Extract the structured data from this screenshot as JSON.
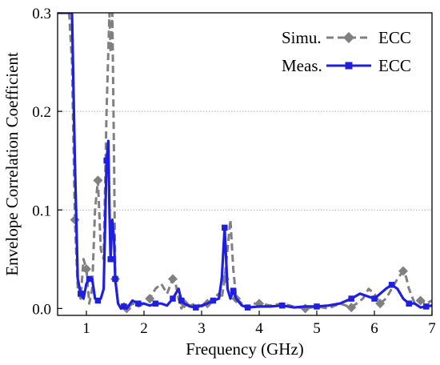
{
  "chart_data": {
    "type": "line",
    "title": "",
    "xlabel": "Frequency (GHz)",
    "ylabel": "Envelope Correlation Coefficient",
    "xlim": [
      0.5,
      7.0
    ],
    "ylim": [
      -0.007,
      0.3
    ],
    "x_ticks": [
      1,
      2,
      3,
      4,
      5,
      6,
      7
    ],
    "x_tick_labels": [
      "1",
      "2",
      "3",
      "4",
      "5",
      "6",
      "7"
    ],
    "y_ticks": [
      0.0,
      0.1,
      0.2,
      0.3
    ],
    "y_tick_labels": [
      "0.0",
      "0.1",
      "0.2",
      "0.3"
    ],
    "grid": "horizontal dotted at 0.1 and 0.2",
    "legend_position": "top-right",
    "series": [
      {
        "name": "ECC",
        "legend_prefix": "Simu.",
        "color": "#808080",
        "dash": "dashed",
        "marker": "diamond",
        "x": [
          0.5,
          0.6,
          0.7,
          0.75,
          0.8,
          0.85,
          0.9,
          0.95,
          1.0,
          1.05,
          1.1,
          1.15,
          1.2,
          1.25,
          1.3,
          1.35,
          1.4,
          1.42,
          1.45,
          1.48,
          1.5,
          1.55,
          1.6,
          1.65,
          1.7,
          1.8,
          1.9,
          2.0,
          2.1,
          2.2,
          2.3,
          2.4,
          2.5,
          2.55,
          2.6,
          2.65,
          2.7,
          2.8,
          2.9,
          3.0,
          3.1,
          3.2,
          3.3,
          3.35,
          3.4,
          3.45,
          3.5,
          3.55,
          3.6,
          3.7,
          3.8,
          3.9,
          4.0,
          4.2,
          4.4,
          4.6,
          4.8,
          5.0,
          5.2,
          5.4,
          5.6,
          5.8,
          5.9,
          6.0,
          6.1,
          6.2,
          6.3,
          6.4,
          6.5,
          6.55,
          6.6,
          6.7,
          6.8,
          6.9,
          7.0
        ],
        "y": [
          0.3,
          0.3,
          0.3,
          0.25,
          0.09,
          0.02,
          0.01,
          0.05,
          0.04,
          0.005,
          0.02,
          0.1,
          0.13,
          0.06,
          0.05,
          0.2,
          0.3,
          0.26,
          0.3,
          0.15,
          0.03,
          0.005,
          0.0,
          0.005,
          0.0,
          0.005,
          0.002,
          0.005,
          0.01,
          0.02,
          0.025,
          0.015,
          0.03,
          0.025,
          0.01,
          0.0,
          0.005,
          0.003,
          0.005,
          0.002,
          0.005,
          0.01,
          0.015,
          0.01,
          0.03,
          0.06,
          0.09,
          0.04,
          0.01,
          0.005,
          0.0,
          0.005,
          0.005,
          0.003,
          0.005,
          0.002,
          0.0,
          0.002,
          0.0,
          0.005,
          0.001,
          0.01,
          0.02,
          0.015,
          0.005,
          0.01,
          0.02,
          0.03,
          0.038,
          0.032,
          0.02,
          0.005,
          0.008,
          0.005,
          0.008
        ]
      },
      {
        "name": "ECC",
        "legend_prefix": "Meas.",
        "color": "#1f1fe0",
        "dash": "solid",
        "marker": "square",
        "x": [
          0.5,
          0.6,
          0.7,
          0.75,
          0.8,
          0.85,
          0.9,
          0.95,
          1.0,
          1.05,
          1.1,
          1.15,
          1.2,
          1.25,
          1.3,
          1.35,
          1.38,
          1.4,
          1.42,
          1.45,
          1.48,
          1.5,
          1.55,
          1.6,
          1.65,
          1.7,
          1.8,
          1.9,
          2.0,
          2.1,
          2.2,
          2.3,
          2.4,
          2.5,
          2.55,
          2.6,
          2.65,
          2.7,
          2.8,
          2.9,
          3.0,
          3.1,
          3.2,
          3.3,
          3.35,
          3.4,
          3.45,
          3.5,
          3.55,
          3.6,
          3.7,
          3.8,
          4.0,
          4.2,
          4.4,
          4.6,
          4.8,
          5.0,
          5.2,
          5.4,
          5.6,
          5.75,
          5.9,
          6.0,
          6.1,
          6.2,
          6.3,
          6.4,
          6.5,
          6.6,
          6.7,
          6.8,
          6.9,
          7.0
        ],
        "y": [
          0.3,
          0.3,
          0.3,
          0.3,
          0.15,
          0.03,
          0.015,
          0.01,
          0.025,
          0.03,
          0.03,
          0.01,
          0.008,
          0.01,
          0.02,
          0.15,
          0.17,
          0.1,
          0.05,
          0.09,
          0.07,
          0.03,
          0.005,
          0.0,
          0.002,
          0.0,
          0.008,
          0.005,
          0.005,
          0.003,
          0.005,
          0.005,
          0.003,
          0.01,
          0.015,
          0.02,
          0.008,
          0.005,
          0.002,
          0.001,
          0.003,
          0.005,
          0.008,
          0.01,
          0.03,
          0.082,
          0.02,
          0.01,
          0.018,
          0.01,
          0.003,
          0.001,
          0.002,
          0.002,
          0.003,
          0.001,
          0.002,
          0.002,
          0.003,
          0.005,
          0.01,
          0.015,
          0.012,
          0.01,
          0.015,
          0.02,
          0.024,
          0.02,
          0.01,
          0.005,
          0.005,
          0.001,
          0.002,
          0.003
        ]
      }
    ]
  }
}
